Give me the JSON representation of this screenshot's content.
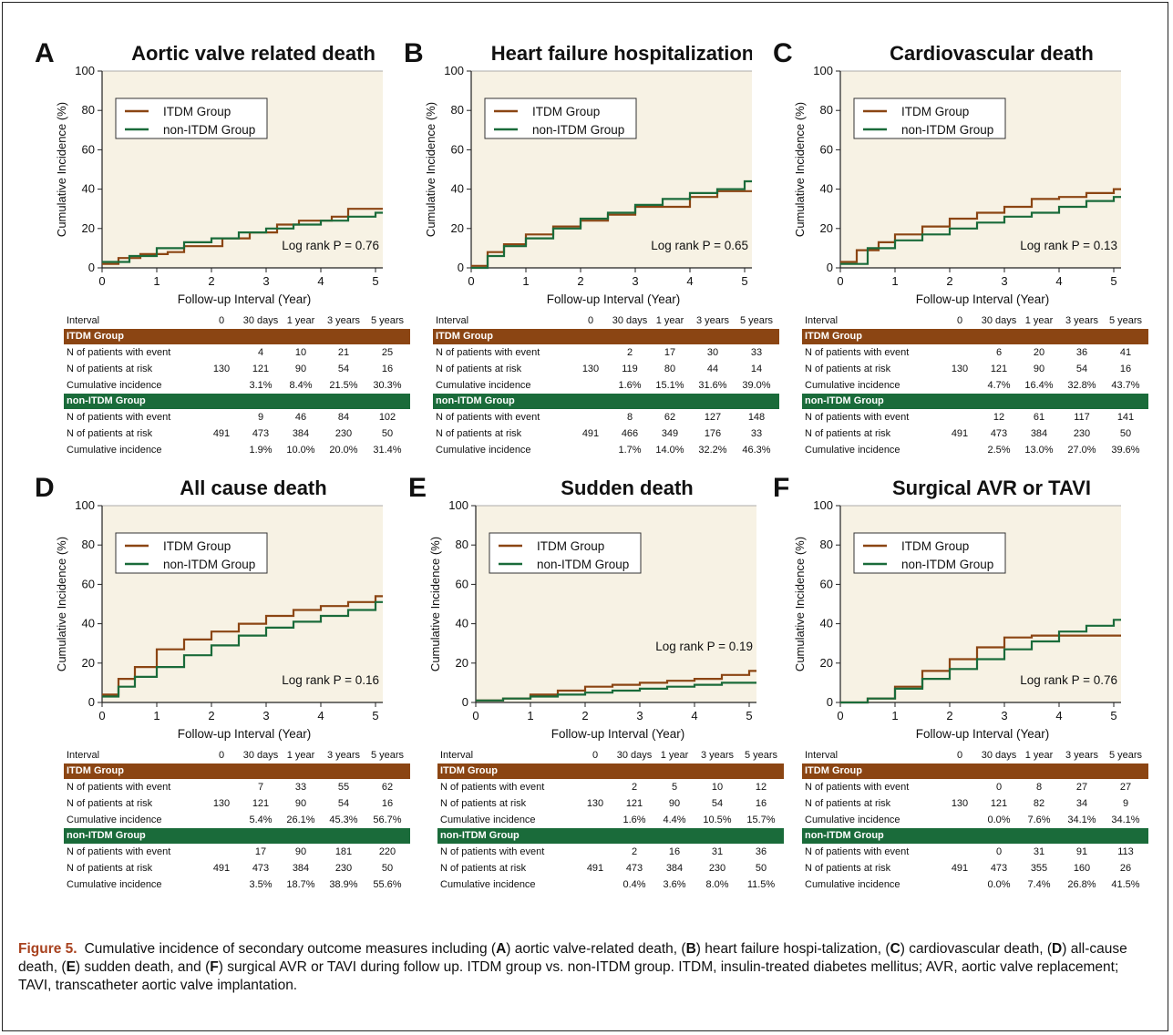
{
  "colors": {
    "itdm": "#8b4513",
    "non_itdm": "#1a6b3a",
    "plot_bg": "#f7f2e4"
  },
  "common": {
    "ylabel": "Cumulative Incidence (%)",
    "xlabel": "Follow-up Interval (Year)",
    "legend": [
      "ITDM Group",
      "non-ITDM Group"
    ],
    "table_header": [
      "Interval",
      "0",
      "30 days",
      "1 year",
      "3 years",
      "5 years"
    ],
    "group_bands": [
      "ITDM Group",
      "non-ITDM Group"
    ],
    "row_labels": [
      "N of patients with event",
      "N of patients at risk",
      "Cumulative incidence"
    ]
  },
  "chart_data": [
    {
      "letter": "A",
      "title": "Aortic valve related death",
      "type": "line",
      "xlim": [
        0,
        5.2
      ],
      "ylim": [
        0,
        100
      ],
      "xticks": [
        0,
        1,
        2,
        3,
        4,
        5
      ],
      "yticks": [
        0,
        20,
        40,
        60,
        80,
        100
      ],
      "log_rank": "Log rank P = 0.76",
      "series": [
        {
          "name": "ITDM Group",
          "x": [
            0,
            0.3,
            0.7,
            1.2,
            1.5,
            2.2,
            2.7,
            3.2,
            3.6,
            4.2,
            4.5,
            5.2
          ],
          "y": [
            2,
            5,
            7,
            8,
            11,
            15,
            18,
            22,
            24,
            26,
            30,
            31
          ]
        },
        {
          "name": "non-ITDM Group",
          "x": [
            0,
            0.5,
            1,
            1.5,
            2,
            2.5,
            3,
            3.5,
            4,
            4.5,
            5,
            5.2
          ],
          "y": [
            3,
            6,
            10,
            13,
            15,
            18,
            20,
            22,
            24,
            26,
            28,
            31
          ]
        }
      ],
      "table": {
        "itdm": {
          "event": [
            "",
            "4",
            "10",
            "21",
            "25"
          ],
          "risk": [
            "130",
            "121",
            "90",
            "54",
            "16"
          ],
          "cum": [
            "",
            "3.1%",
            "8.4%",
            "21.5%",
            "30.3%"
          ]
        },
        "non_itdm": {
          "event": [
            "",
            "9",
            "46",
            "84",
            "102"
          ],
          "risk": [
            "491",
            "473",
            "384",
            "230",
            "50"
          ],
          "cum": [
            "",
            "1.9%",
            "10.0%",
            "20.0%",
            "31.4%"
          ]
        }
      }
    },
    {
      "letter": "B",
      "title": "Heart failure hospitalization",
      "type": "line",
      "xlim": [
        0,
        5.2
      ],
      "ylim": [
        0,
        100
      ],
      "xticks": [
        0,
        1,
        2,
        3,
        4,
        5
      ],
      "yticks": [
        0,
        20,
        40,
        60,
        80,
        100
      ],
      "log_rank": "Log rank P = 0.65",
      "series": [
        {
          "name": "ITDM Group",
          "x": [
            0,
            0.3,
            0.6,
            1,
            1.5,
            2,
            2.5,
            3,
            3.5,
            4,
            4.5,
            5.2
          ],
          "y": [
            1,
            8,
            12,
            17,
            21,
            24,
            27,
            31,
            31,
            36,
            39,
            39
          ]
        },
        {
          "name": "non-ITDM Group",
          "x": [
            0,
            0.3,
            0.6,
            1,
            1.5,
            2,
            2.5,
            3,
            3.5,
            4,
            4.5,
            5,
            5.2
          ],
          "y": [
            0,
            6,
            11,
            15,
            20,
            25,
            28,
            32,
            35,
            38,
            40,
            44,
            46
          ]
        }
      ],
      "table": {
        "itdm": {
          "event": [
            "",
            "2",
            "17",
            "30",
            "33"
          ],
          "risk": [
            "130",
            "119",
            "80",
            "44",
            "14"
          ],
          "cum": [
            "",
            "1.6%",
            "15.1%",
            "31.6%",
            "39.0%"
          ]
        },
        "non_itdm": {
          "event": [
            "",
            "8",
            "62",
            "127",
            "148"
          ],
          "risk": [
            "491",
            "466",
            "349",
            "176",
            "33"
          ],
          "cum": [
            "",
            "1.7%",
            "14.0%",
            "32.2%",
            "46.3%"
          ]
        }
      }
    },
    {
      "letter": "C",
      "title": "Cardiovascular death",
      "type": "line",
      "xlim": [
        0,
        5.2
      ],
      "ylim": [
        0,
        100
      ],
      "xticks": [
        0,
        1,
        2,
        3,
        4,
        5
      ],
      "yticks": [
        0,
        20,
        40,
        60,
        80,
        100
      ],
      "log_rank": "Log rank P = 0.13",
      "series": [
        {
          "name": "ITDM Group",
          "x": [
            0,
            0.3,
            0.7,
            1,
            1.5,
            2,
            2.5,
            3,
            3.5,
            4,
            4.5,
            5,
            5.2
          ],
          "y": [
            3,
            9,
            13,
            17,
            21,
            25,
            28,
            31,
            35,
            36,
            38,
            40,
            44
          ]
        },
        {
          "name": "non-ITDM Group",
          "x": [
            0,
            0.5,
            1,
            1.5,
            2,
            2.5,
            3,
            3.5,
            4,
            4.5,
            5,
            5.2
          ],
          "y": [
            2,
            10,
            14,
            17,
            20,
            23,
            26,
            28,
            31,
            34,
            36,
            40
          ]
        }
      ],
      "table": {
        "itdm": {
          "event": [
            "",
            "6",
            "20",
            "36",
            "41"
          ],
          "risk": [
            "130",
            "121",
            "90",
            "54",
            "16"
          ],
          "cum": [
            "",
            "4.7%",
            "16.4%",
            "32.8%",
            "43.7%"
          ]
        },
        "non_itdm": {
          "event": [
            "",
            "12",
            "61",
            "117",
            "141"
          ],
          "risk": [
            "491",
            "473",
            "384",
            "230",
            "50"
          ],
          "cum": [
            "",
            "2.5%",
            "13.0%",
            "27.0%",
            "39.6%"
          ]
        }
      }
    },
    {
      "letter": "D",
      "title": "All cause death",
      "type": "line",
      "xlim": [
        0,
        5.2
      ],
      "ylim": [
        0,
        100
      ],
      "xticks": [
        0,
        1,
        2,
        3,
        4,
        5
      ],
      "yticks": [
        0,
        20,
        40,
        60,
        80,
        100
      ],
      "log_rank": "Log rank P = 0.16",
      "series": [
        {
          "name": "ITDM Group",
          "x": [
            0,
            0.3,
            0.6,
            1,
            1.5,
            2,
            2.5,
            3,
            3.5,
            4,
            4.5,
            5,
            5.2
          ],
          "y": [
            4,
            12,
            18,
            27,
            32,
            36,
            40,
            44,
            47,
            49,
            51,
            54,
            57
          ]
        },
        {
          "name": "non-ITDM Group",
          "x": [
            0,
            0.3,
            0.6,
            1,
            1.5,
            2,
            2.5,
            3,
            3.5,
            4,
            4.5,
            5,
            5.2
          ],
          "y": [
            3,
            8,
            13,
            18,
            24,
            29,
            34,
            38,
            41,
            44,
            47,
            51,
            55
          ]
        }
      ],
      "table": {
        "itdm": {
          "event": [
            "",
            "7",
            "33",
            "55",
            "62"
          ],
          "risk": [
            "130",
            "121",
            "90",
            "54",
            "16"
          ],
          "cum": [
            "",
            "5.4%",
            "26.1%",
            "45.3%",
            "56.7%"
          ]
        },
        "non_itdm": {
          "event": [
            "",
            "17",
            "90",
            "181",
            "220"
          ],
          "risk": [
            "491",
            "473",
            "384",
            "230",
            "50"
          ],
          "cum": [
            "",
            "3.5%",
            "18.7%",
            "38.9%",
            "55.6%"
          ]
        }
      }
    },
    {
      "letter": "E",
      "title": "Sudden death",
      "type": "line",
      "xlim": [
        0,
        5.2
      ],
      "ylim": [
        0,
        100
      ],
      "xticks": [
        0,
        1,
        2,
        3,
        4,
        5
      ],
      "yticks": [
        0,
        20,
        40,
        60,
        80,
        100
      ],
      "log_rank": "Log rank P = 0.19",
      "series": [
        {
          "name": "ITDM Group",
          "x": [
            0,
            0.5,
            1,
            1.5,
            2,
            2.5,
            3,
            3.5,
            4,
            4.5,
            5,
            5.2
          ],
          "y": [
            1,
            2,
            4,
            6,
            8,
            9,
            10,
            11,
            12,
            14,
            16,
            16
          ]
        },
        {
          "name": "non-ITDM Group",
          "x": [
            0,
            0.5,
            1,
            1.5,
            2,
            2.5,
            3,
            3.5,
            4,
            4.5,
            5,
            5.2
          ],
          "y": [
            1,
            2,
            3,
            4,
            5,
            6,
            7,
            8,
            9,
            10,
            10,
            12
          ]
        }
      ],
      "table": {
        "itdm": {
          "event": [
            "",
            "2",
            "5",
            "10",
            "12"
          ],
          "risk": [
            "130",
            "121",
            "90",
            "54",
            "16"
          ],
          "cum": [
            "",
            "1.6%",
            "4.4%",
            "10.5%",
            "15.7%"
          ]
        },
        "non_itdm": {
          "event": [
            "",
            "2",
            "16",
            "31",
            "36"
          ],
          "risk": [
            "491",
            "473",
            "384",
            "230",
            "50"
          ],
          "cum": [
            "",
            "0.4%",
            "3.6%",
            "8.0%",
            "11.5%"
          ]
        }
      }
    },
    {
      "letter": "F",
      "title": "Surgical AVR or TAVI",
      "type": "line",
      "xlim": [
        0,
        5.2
      ],
      "ylim": [
        0,
        100
      ],
      "xticks": [
        0,
        1,
        2,
        3,
        4,
        5
      ],
      "yticks": [
        0,
        20,
        40,
        60,
        80,
        100
      ],
      "log_rank": "Log rank P = 0.76",
      "series": [
        {
          "name": "ITDM Group",
          "x": [
            0,
            0.5,
            1,
            1.5,
            2,
            2.5,
            3,
            3.5,
            4,
            4.5,
            5,
            5.2
          ],
          "y": [
            0,
            2,
            8,
            16,
            22,
            28,
            33,
            34,
            34,
            34,
            34,
            34
          ]
        },
        {
          "name": "non-ITDM Group",
          "x": [
            0,
            0.5,
            1,
            1.5,
            2,
            2.5,
            3,
            3.5,
            4,
            4.5,
            5,
            5.2
          ],
          "y": [
            0,
            2,
            7,
            12,
            17,
            22,
            27,
            31,
            36,
            39,
            42,
            42
          ]
        }
      ],
      "table": {
        "itdm": {
          "event": [
            "",
            "0",
            "8",
            "27",
            "27"
          ],
          "risk": [
            "130",
            "121",
            "82",
            "34",
            "9"
          ],
          "cum": [
            "",
            "0.0%",
            "7.6%",
            "34.1%",
            "34.1%"
          ]
        },
        "non_itdm": {
          "event": [
            "",
            "0",
            "31",
            "91",
            "113"
          ],
          "risk": [
            "491",
            "473",
            "355",
            "160",
            "26"
          ],
          "cum": [
            "",
            "0.0%",
            "7.4%",
            "26.8%",
            "41.5%"
          ]
        }
      }
    }
  ],
  "caption": {
    "label": "Figure 5.",
    "parts": [
      [
        "t",
        "Cumulative incidence of secondary outcome measures including ("
      ],
      [
        "b",
        "A"
      ],
      [
        "t",
        ") aortic valve-related death, ("
      ],
      [
        "b",
        "B"
      ],
      [
        "t",
        ") heart failure hospi-talization, ("
      ],
      [
        "b",
        "C"
      ],
      [
        "t",
        ") cardiovascular death, ("
      ],
      [
        "b",
        "D"
      ],
      [
        "t",
        ") all-cause death, ("
      ],
      [
        "b",
        "E"
      ],
      [
        "t",
        ") sudden death, and ("
      ],
      [
        "b",
        "F"
      ],
      [
        "t",
        ") surgical AVR or TAVI during follow up. ITDM group vs. non-ITDM group. ITDM, insulin-treated diabetes mellitus; AVR, aortic valve replacement; TAVI, transcatheter aortic valve implantation."
      ]
    ]
  }
}
